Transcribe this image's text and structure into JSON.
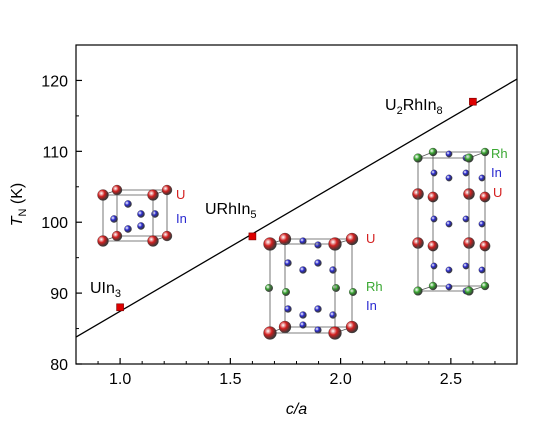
{
  "chart_data": {
    "type": "scatter",
    "xlabel": "c/a",
    "ylabel_main": "T",
    "ylabel_sub": "N",
    "ylabel_unit": "(K)",
    "xlim": [
      0.8,
      2.8
    ],
    "ylim": [
      80,
      125
    ],
    "xticks": [
      1.0,
      1.5,
      2.0,
      2.5
    ],
    "xtick_labels": [
      "1.0",
      "1.5",
      "2.0",
      "2.5"
    ],
    "yticks": [
      80,
      90,
      100,
      110,
      120
    ],
    "ytick_labels": [
      "80",
      "90",
      "100",
      "110",
      "120"
    ],
    "grid": false,
    "points": [
      {
        "x": 1.0,
        "y": 88,
        "label_parts": [
          "UIn",
          "3",
          ""
        ]
      },
      {
        "x": 1.6,
        "y": 98,
        "label_parts": [
          "URhIn",
          "5",
          ""
        ]
      },
      {
        "x": 2.6,
        "y": 117,
        "label_parts": [
          "U",
          "2",
          "RhIn",
          "8"
        ]
      }
    ],
    "fit_line": {
      "x0": 0.8,
      "y0": 83.8,
      "x1": 2.8,
      "y1": 120.2
    },
    "marker_color": "#dd0000",
    "crystal_labels": {
      "uin3": [
        "U",
        "In"
      ],
      "urhin5": [
        "U",
        "Rh",
        "In"
      ],
      "u2rhin8": [
        "Rh",
        "In",
        "U"
      ]
    },
    "atom_colors": {
      "U": "#d42020",
      "In": "#2a2ad0",
      "Rh": "#3aa832"
    }
  }
}
